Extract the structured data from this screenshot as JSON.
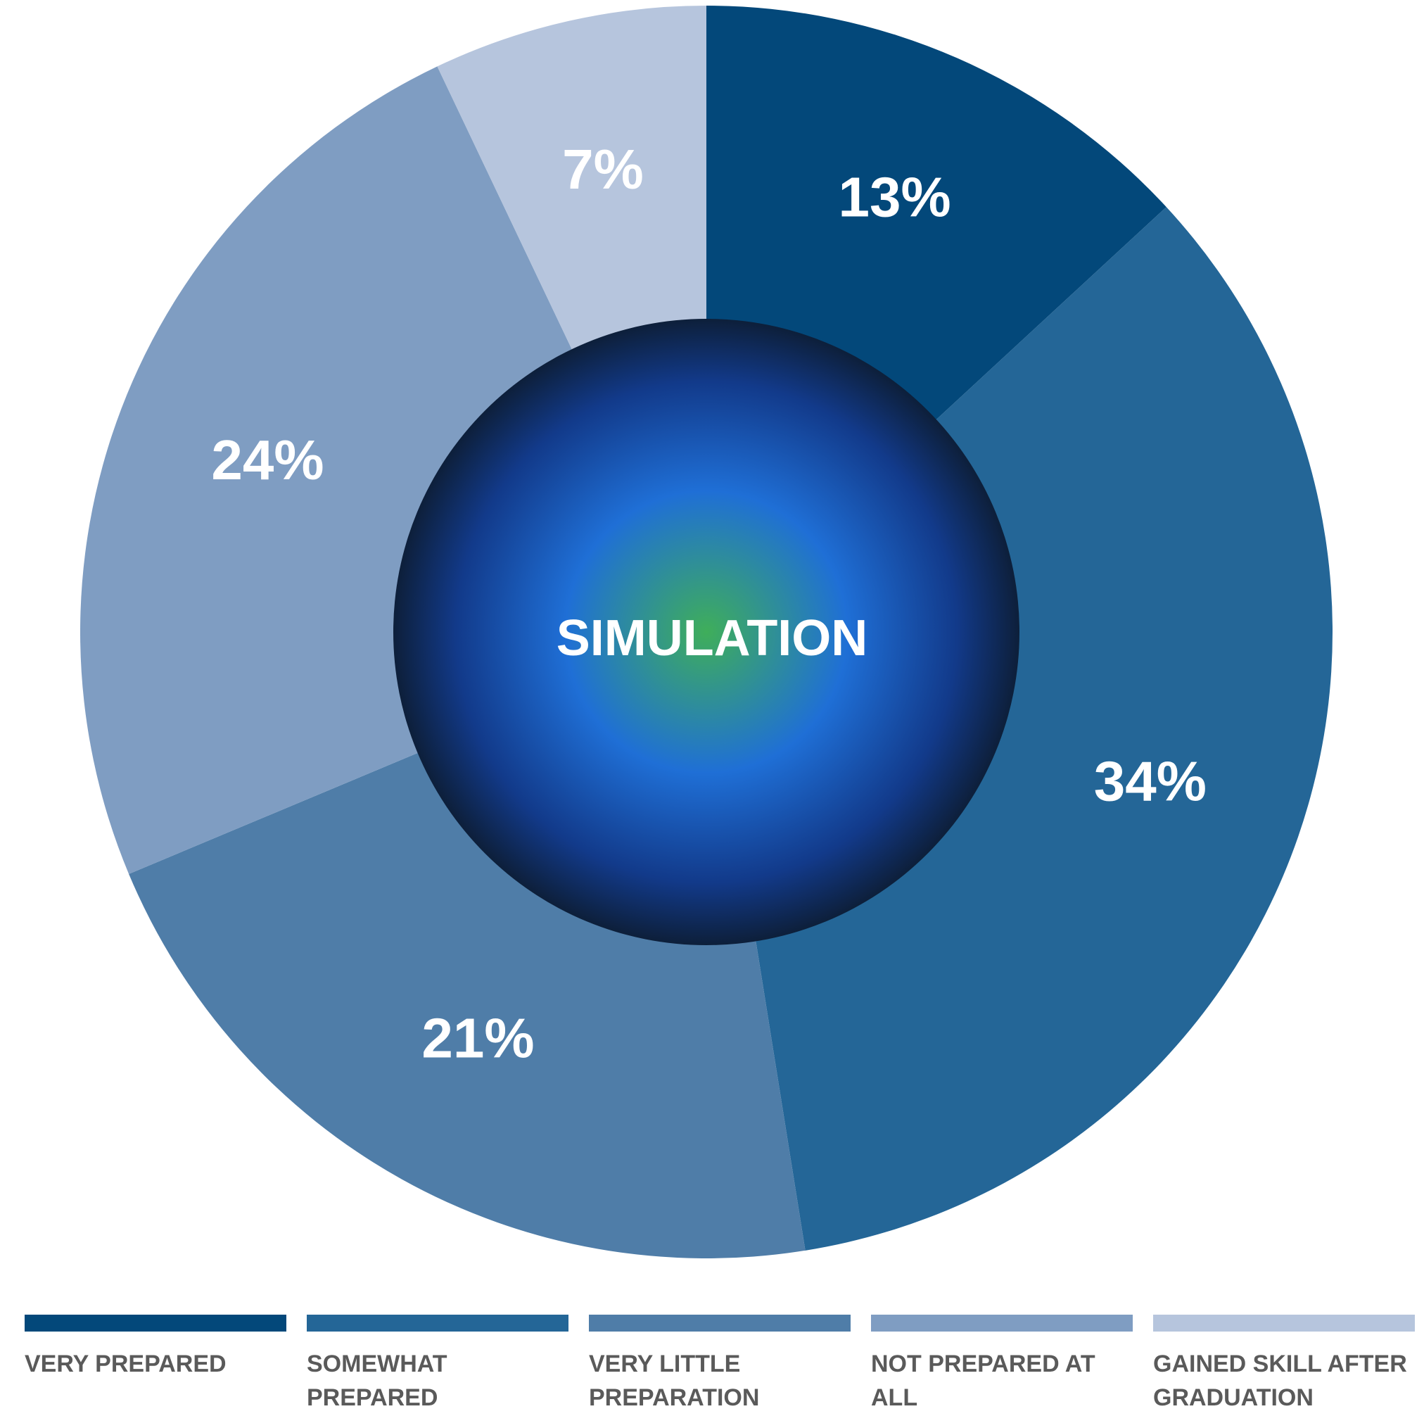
{
  "chart_data": {
    "type": "donut",
    "center_label": "SIMULATION",
    "categories": [
      "VERY PREPARED",
      "SOMEWHAT PREPARED",
      "VERY LITTLE PREPARATION",
      "NOT PREPARED AT ALL",
      "GAINED SKILL AFTER GRADUATION"
    ],
    "values": [
      13,
      34,
      21,
      24,
      7
    ],
    "value_labels": [
      "13%",
      "34%",
      "21%",
      "24%",
      "7%"
    ],
    "colors": [
      "#03487a",
      "#246697",
      "#4f7da8",
      "#7f9dc2",
      "#b6c5dd"
    ]
  }
}
